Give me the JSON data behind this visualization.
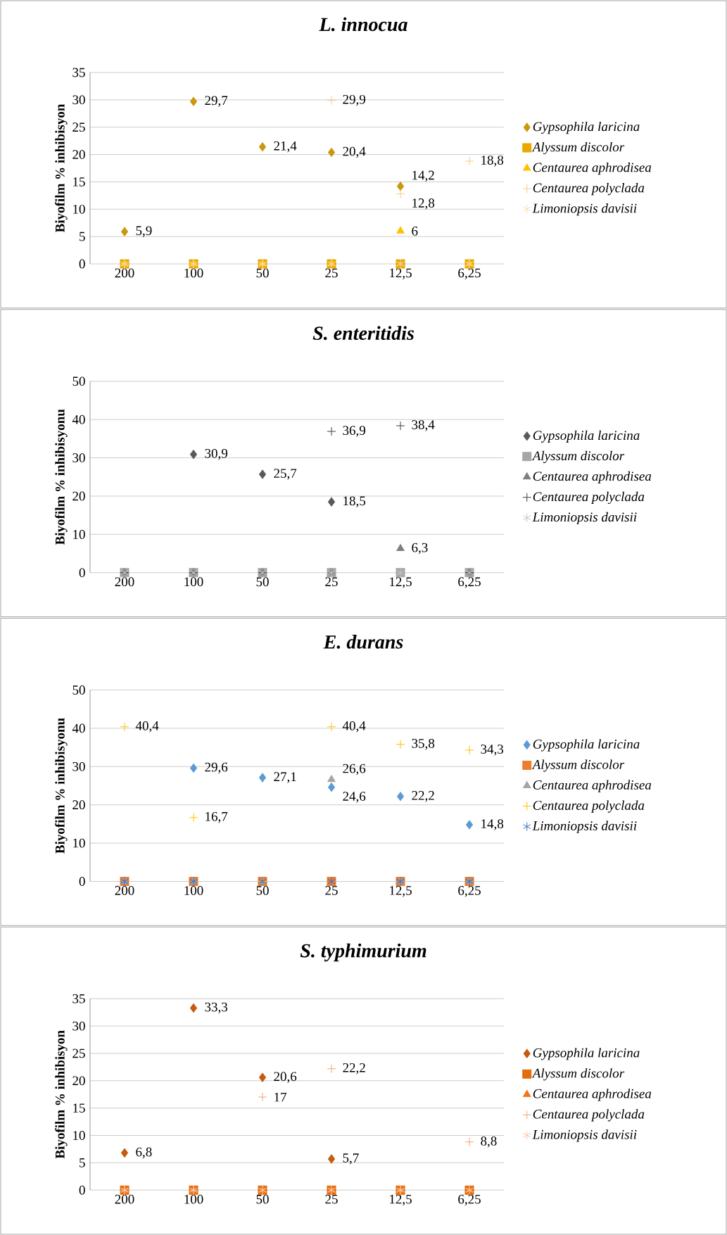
{
  "chart_data": [
    {
      "type": "scatter",
      "title": "L. innocua",
      "ylabel": "Biyofilm % inhibisyon",
      "categories": [
        "200",
        "100",
        "50",
        "25",
        "12,5",
        "6,25"
      ],
      "ylim": [
        0,
        35
      ],
      "yticks": [
        0,
        5,
        10,
        15,
        20,
        25,
        30,
        35
      ],
      "grid": "y",
      "legend": "right",
      "series": [
        {
          "name": "Gypsophila laricina",
          "color": "#c9980e",
          "marker": "diamond",
          "values": [
            5.9,
            29.7,
            21.4,
            20.4,
            14.2,
            null
          ],
          "value_labels": [
            "5,9",
            "29,7",
            "21,4",
            "20,4",
            "14,2",
            null
          ]
        },
        {
          "name": "Alyssum discolor",
          "color": "#e8a800",
          "marker": "square",
          "values": [
            0,
            0,
            0,
            0,
            0,
            0
          ],
          "value_labels": [
            null,
            null,
            null,
            null,
            null,
            null
          ]
        },
        {
          "name": "Centaurea aphrodisea",
          "color": "#ffc000",
          "marker": "triangle",
          "values": [
            0,
            0,
            0,
            0,
            6,
            0
          ],
          "value_labels": [
            null,
            null,
            null,
            null,
            "6",
            null
          ]
        },
        {
          "name": "Centaurea polyclada",
          "color": "#f5cd86",
          "marker": "cross",
          "values": [
            0,
            0,
            0,
            29.9,
            12.8,
            18.8
          ],
          "value_labels": [
            null,
            null,
            null,
            "29,9",
            "12,8",
            "18,8"
          ]
        },
        {
          "name": "Limoniopsis davisii",
          "color": "#fbdcb0",
          "values": [
            0,
            0,
            0,
            0,
            0,
            0
          ],
          "value_labels": [
            null,
            null,
            null,
            null,
            null,
            null
          ]
        }
      ]
    },
    {
      "type": "scatter",
      "title": "S. enteritidis",
      "ylabel": "Biyofilm % inhibisyonu",
      "categories": [
        "200",
        "100",
        "50",
        "25",
        "12,5",
        "6,25"
      ],
      "ylim": [
        0,
        50
      ],
      "yticks": [
        0,
        10,
        20,
        30,
        40,
        50
      ],
      "grid": "y",
      "legend": "right",
      "series": [
        {
          "name": "Gypsophila laricina",
          "color": "#595959",
          "marker": "diamond",
          "values": [
            null,
            30.9,
            25.7,
            18.5,
            null,
            null
          ],
          "value_labels": [
            null,
            "30,9",
            "25,7",
            "18,5",
            null,
            null
          ]
        },
        {
          "name": "Alyssum discolor",
          "color": "#a6a6a6",
          "marker": "square",
          "values": [
            0,
            0,
            0,
            0,
            0,
            0
          ],
          "value_labels": [
            null,
            null,
            null,
            null,
            null,
            null
          ]
        },
        {
          "name": "Centaurea aphrodisea",
          "color": "#7f7f7f",
          "marker": "triangle",
          "values": [
            0,
            0,
            0,
            0,
            6.3,
            0
          ],
          "value_labels": [
            null,
            null,
            null,
            null,
            "6,3",
            null
          ]
        },
        {
          "name": "Centaurea polyclada",
          "color": "#404040",
          "marker": "cross",
          "values": [
            0,
            0,
            0,
            36.9,
            38.4,
            0
          ],
          "value_labels": [
            null,
            null,
            null,
            "36,9",
            "38,4",
            null
          ]
        },
        {
          "name": "Limoniopsis davisii",
          "color": "#c4c4c4",
          "values": [
            0,
            0,
            0,
            0,
            0,
            0
          ],
          "value_labels": [
            null,
            null,
            null,
            null,
            null,
            null
          ]
        }
      ]
    },
    {
      "type": "scatter",
      "title": "E. durans",
      "ylabel": "Biyofilm % inhibisyonu",
      "categories": [
        "200",
        "100",
        "50",
        "25",
        "12,5",
        "6,25"
      ],
      "ylim": [
        0,
        50
      ],
      "yticks": [
        0,
        10,
        20,
        30,
        40,
        50
      ],
      "grid": "y",
      "legend": "right",
      "series": [
        {
          "name": "Gypsophila laricina",
          "color": "#5b9bd5",
          "marker": "diamond",
          "values": [
            null,
            29.6,
            27.1,
            24.6,
            22.2,
            14.8
          ],
          "value_labels": [
            null,
            "29,6",
            "27,1",
            "24,6",
            "22,2",
            "14,8"
          ]
        },
        {
          "name": "Alyssum discolor",
          "color": "#ed7d31",
          "marker": "square",
          "values": [
            0,
            0,
            0,
            0,
            0,
            0
          ],
          "value_labels": [
            null,
            null,
            null,
            null,
            null,
            null
          ]
        },
        {
          "name": "Centaurea aphrodisea",
          "color": "#a5a5a5",
          "marker": "triangle",
          "values": [
            0,
            0,
            0,
            26.6,
            0,
            0
          ],
          "value_labels": [
            null,
            null,
            null,
            "26,6",
            null,
            null
          ]
        },
        {
          "name": "Centaurea polyclada",
          "color": "#ffc000",
          "marker": "cross",
          "values": [
            40.4,
            16.7,
            0,
            40.4,
            35.8,
            34.3
          ],
          "value_labels": [
            "40,4",
            "16,7",
            null,
            "40,4",
            "35,8",
            "34,3"
          ]
        },
        {
          "name": "Limoniopsis davisii",
          "color": "#4472c4",
          "values": [
            0,
            0,
            0,
            0,
            0,
            0
          ],
          "value_labels": [
            null,
            null,
            null,
            null,
            null,
            null
          ]
        }
      ]
    },
    {
      "type": "scatter",
      "title": "S. typhimurium",
      "ylabel": "Biyofilm % inhibisyon",
      "categories": [
        "200",
        "100",
        "50",
        "25",
        "12,5",
        "6,25"
      ],
      "ylim": [
        0,
        35
      ],
      "yticks": [
        0,
        5,
        10,
        15,
        20,
        25,
        30,
        35
      ],
      "grid": "y",
      "legend": "right",
      "series": [
        {
          "name": "Gypsophila laricina",
          "color": "#c55a11",
          "marker": "diamond",
          "values": [
            6.8,
            33.3,
            20.6,
            5.7,
            null,
            null
          ],
          "value_labels": [
            "6,8",
            "33,3",
            "20,6",
            "5,7",
            null,
            null
          ]
        },
        {
          "name": "Alyssum discolor",
          "color": "#e46c0a",
          "marker": "square",
          "values": [
            0,
            0,
            0,
            0,
            0,
            0
          ],
          "value_labels": [
            null,
            null,
            null,
            null,
            null,
            null
          ]
        },
        {
          "name": "Centaurea aphrodisea",
          "color": "#f4741c",
          "marker": "triangle",
          "values": [
            0,
            0,
            0,
            0,
            0,
            0
          ],
          "value_labels": [
            null,
            null,
            null,
            null,
            null,
            null
          ]
        },
        {
          "name": "Centaurea polyclada",
          "color": "#f4a472",
          "marker": "cross",
          "values": [
            0,
            0,
            17,
            22.2,
            0,
            8.8
          ],
          "value_labels": [
            null,
            null,
            "17",
            "22,2",
            null,
            "8,8"
          ]
        },
        {
          "name": "Limoniopsis davisii",
          "color": "#f8cbad",
          "values": [
            0,
            0,
            0,
            0,
            0,
            0
          ],
          "value_labels": [
            null,
            null,
            null,
            null,
            null,
            null
          ]
        }
      ]
    }
  ]
}
